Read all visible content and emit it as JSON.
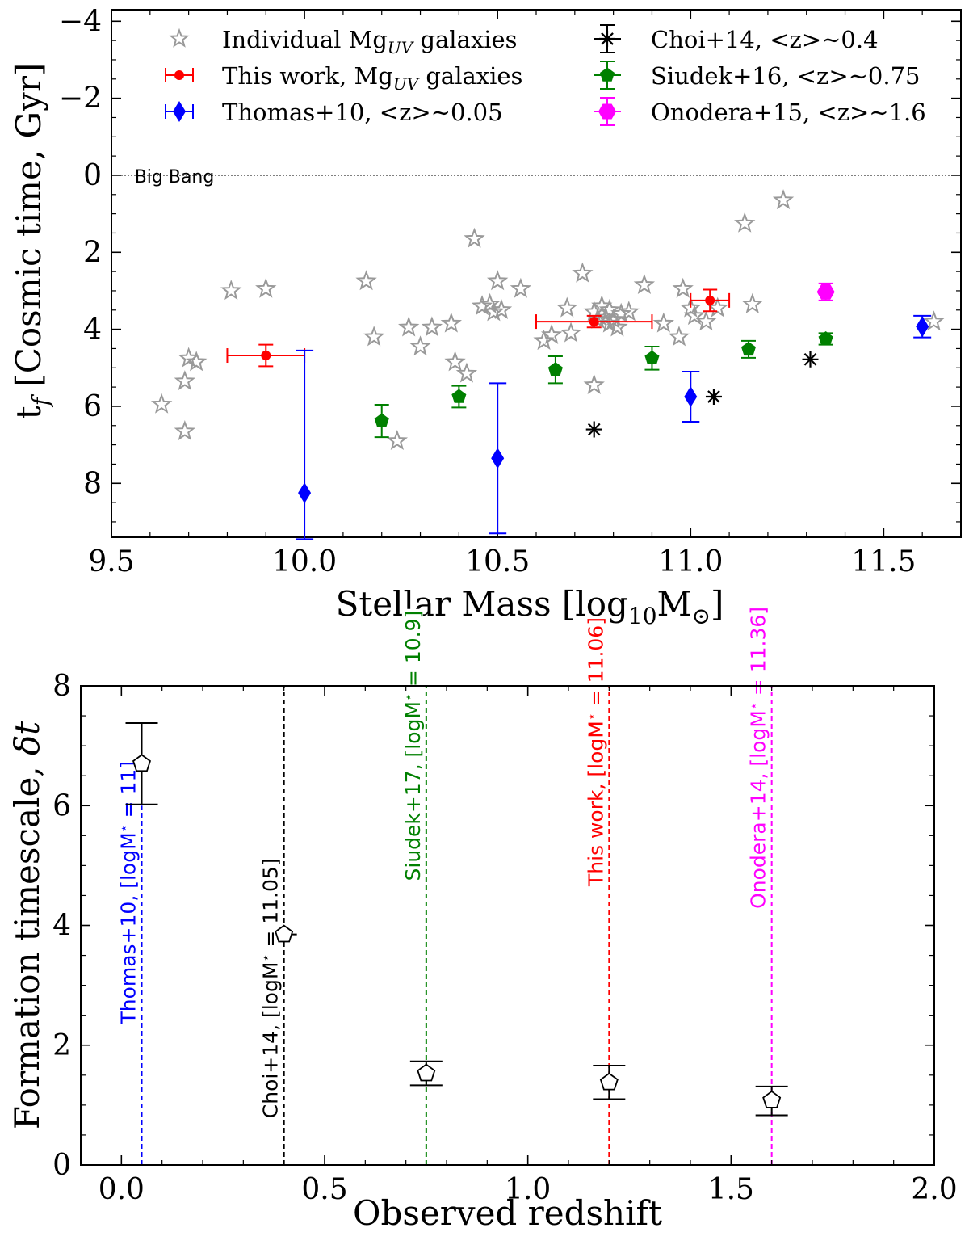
{
  "chart_data": [
    {
      "type": "scatter",
      "xlabel": "Stellar Mass [log",
      "xlabel_sub": "10",
      "xlabel_tail": "M",
      "xlabel_sun": "⊙",
      "xlabel_close": "]",
      "ylabel": "t",
      "ylabel_sub": "f",
      "ylabel_tail": " [Cosmic time, Gyr]",
      "xlim": [
        9.5,
        11.7
      ],
      "ylim": [
        9.4,
        -4.3
      ],
      "y_inverted": true,
      "x_ticks": [
        "9.5",
        "10.0",
        "10.5",
        "11.0",
        "11.5"
      ],
      "x_tick_values": [
        9.5,
        10.0,
        10.5,
        11.0,
        11.5
      ],
      "y_ticks": [
        "−4",
        "−2",
        "0",
        "2",
        "4",
        "6",
        "8"
      ],
      "y_tick_values": [
        -4,
        -2,
        0,
        2,
        4,
        6,
        8
      ],
      "annotation": {
        "text": "Big Bang",
        "x": 9.56,
        "y": 0
      },
      "reference_line": {
        "y": 0,
        "style": "dotted",
        "color": "#000000"
      },
      "legend": {
        "placement": "top",
        "entries": [
          {
            "label": "Individual Mg",
            "sub": "UV",
            "tail": " galaxies",
            "marker": "star-open",
            "color": "#999999"
          },
          {
            "label": "This work, Mg",
            "sub": "UV",
            "tail": " galaxies",
            "marker": "circle",
            "color": "#ff0000"
          },
          {
            "label": "Thomas+10, <z>∼0.05",
            "sub": "",
            "tail": "",
            "marker": "diamond",
            "color": "#0000ff"
          },
          {
            "label": "Choi+14, <z>∼0.4",
            "sub": "",
            "tail": "",
            "marker": "asterisk",
            "color": "#000000"
          },
          {
            "label": "Siudek+16, <z>∼0.75",
            "sub": "",
            "tail": "",
            "marker": "pentagon",
            "color": "#008000"
          },
          {
            "label": "Onodera+15, <z>∼1.6",
            "sub": "",
            "tail": "",
            "marker": "hexagon",
            "color": "#ff00ff"
          }
        ]
      },
      "series": [
        {
          "name": "Individual Mg_UV galaxies",
          "marker": "star-open",
          "color": "#999999",
          "points": [
            [
              9.63,
              5.95
            ],
            [
              9.69,
              5.35
            ],
            [
              9.7,
              4.75
            ],
            [
              9.72,
              4.85
            ],
            [
              9.69,
              6.65
            ],
            [
              9.81,
              3.0
            ],
            [
              9.9,
              2.95
            ],
            [
              10.16,
              2.75
            ],
            [
              10.18,
              4.2
            ],
            [
              10.24,
              6.9
            ],
            [
              10.27,
              3.95
            ],
            [
              10.3,
              4.45
            ],
            [
              10.33,
              3.95
            ],
            [
              10.38,
              3.85
            ],
            [
              10.39,
              4.85
            ],
            [
              10.42,
              5.15
            ],
            [
              10.44,
              1.65
            ],
            [
              10.46,
              3.4
            ],
            [
              10.48,
              3.35
            ],
            [
              10.49,
              3.55
            ],
            [
              10.51,
              3.5
            ],
            [
              10.5,
              2.75
            ],
            [
              10.56,
              2.95
            ],
            [
              10.62,
              4.3
            ],
            [
              10.64,
              4.15
            ],
            [
              10.68,
              3.45
            ],
            [
              10.69,
              4.1
            ],
            [
              10.72,
              2.55
            ],
            [
              10.75,
              3.55
            ],
            [
              10.76,
              3.75
            ],
            [
              10.77,
              3.4
            ],
            [
              10.78,
              3.7
            ],
            [
              10.79,
              3.5
            ],
            [
              10.8,
              3.75
            ],
            [
              10.81,
              3.95
            ],
            [
              10.82,
              3.6
            ],
            [
              10.84,
              3.55
            ],
            [
              10.79,
              3.85
            ],
            [
              10.75,
              5.45
            ],
            [
              10.88,
              2.85
            ],
            [
              10.93,
              3.85
            ],
            [
              10.97,
              4.2
            ],
            [
              10.98,
              2.95
            ],
            [
              11.0,
              3.45
            ],
            [
              11.01,
              3.65
            ],
            [
              11.04,
              3.8
            ],
            [
              11.07,
              3.45
            ],
            [
              11.14,
              1.25
            ],
            [
              11.16,
              3.35
            ],
            [
              11.24,
              0.65
            ],
            [
              11.63,
              3.8
            ]
          ]
        },
        {
          "name": "This work, Mg_UV galaxies",
          "marker": "circle",
          "color": "#ff0000",
          "points": [
            {
              "x": 9.9,
              "y": 4.68,
              "xerr": 0.1,
              "yerr": 0.28
            },
            {
              "x": 10.75,
              "y": 3.8,
              "xerr": 0.15,
              "yerr": 0.15
            },
            {
              "x": 11.05,
              "y": 3.25,
              "xerr": 0.05,
              "yerr": 0.28
            }
          ]
        },
        {
          "name": "Thomas+10, <z>~0.05",
          "marker": "diamond",
          "color": "#0000ff",
          "points": [
            {
              "x": 10.0,
              "y": 8.25,
              "yerr_low": 3.7,
              "yerr_high": 1.2
            },
            {
              "x": 10.5,
              "y": 7.35,
              "yerr_low": 1.95,
              "yerr_high": 1.95
            },
            {
              "x": 11.0,
              "y": 5.75,
              "yerr_low": 0.65,
              "yerr_high": 0.65
            },
            {
              "x": 11.6,
              "y": 3.93,
              "yerr_low": 0.28,
              "yerr_high": 0.28
            }
          ]
        },
        {
          "name": "Choi+14, <z>~0.4",
          "marker": "asterisk",
          "color": "#000000",
          "points": [
            [
              10.75,
              6.6
            ],
            [
              11.06,
              5.75
            ],
            [
              11.31,
              4.78
            ]
          ]
        },
        {
          "name": "Siudek+16, <z>~0.75",
          "marker": "pentagon",
          "color": "#008000",
          "points": [
            {
              "x": 10.2,
              "y": 6.38,
              "yerr": 0.42
            },
            {
              "x": 10.4,
              "y": 5.75,
              "yerr": 0.28
            },
            {
              "x": 10.65,
              "y": 5.05,
              "yerr": 0.35
            },
            {
              "x": 10.9,
              "y": 4.75,
              "yerr": 0.3
            },
            {
              "x": 11.15,
              "y": 4.52,
              "yerr": 0.22
            },
            {
              "x": 11.35,
              "y": 4.25,
              "yerr": 0.15
            }
          ]
        },
        {
          "name": "Onodera+15, <z>~1.6",
          "marker": "hexagon",
          "color": "#ff00ff",
          "points": [
            {
              "x": 11.35,
              "y": 3.03,
              "yerr": 0.22
            }
          ]
        }
      ]
    },
    {
      "type": "scatter",
      "xlabel": "Observed redshift",
      "ylabel": "Formation timescale, ",
      "ylabel_math": "δt",
      "xlim": [
        -0.1,
        2.0
      ],
      "ylim": [
        0,
        8
      ],
      "x_ticks": [
        "0.0",
        "0.5",
        "1.0",
        "1.5",
        "2.0"
      ],
      "x_tick_values": [
        0.0,
        0.5,
        1.0,
        1.5,
        2.0
      ],
      "y_ticks": [
        "0",
        "2",
        "4",
        "6",
        "8"
      ],
      "y_tick_values": [
        0,
        2,
        4,
        6,
        8
      ],
      "series": [
        {
          "name": "",
          "marker": "pentagon-open",
          "color": "#000000",
          "points": [
            {
              "x": 0.05,
              "y": 6.7,
              "err_low": 0.68,
              "err_high": 0.68
            },
            {
              "x": 0.4,
              "y": 3.85,
              "err_low": 0.0,
              "err_high": 0.0
            },
            {
              "x": 0.75,
              "y": 1.53,
              "err_low": 0.2,
              "err_high": 0.2
            },
            {
              "x": 1.2,
              "y": 1.38,
              "err_low": 0.28,
              "err_high": 0.28
            },
            {
              "x": 1.6,
              "y": 1.08,
              "err_low": 0.25,
              "err_high": 0.23
            }
          ]
        }
      ],
      "vlines": [
        {
          "x": 0.05,
          "color": "#0000ff",
          "label": "Thomas+10, [logM",
          "star": "⋆",
          "tail": " = 11]",
          "label_y": 4.55,
          "y_top": 6.0
        },
        {
          "x": 0.4,
          "color": "#000000",
          "label": "Choi+14, [logM",
          "star": "⋆",
          "tail": " = 11.05]",
          "label_y": 2.95,
          "y_top": 8.0
        },
        {
          "x": 0.75,
          "color": "#008000",
          "label": "Siudek+17, [logM",
          "star": "⋆",
          "tail": " = 10.9]",
          "label_y": 7.0,
          "y_top": 8.0
        },
        {
          "x": 1.2,
          "color": "#ff0000",
          "label": "This work, [logM",
          "star": "⋆",
          "tail": " = 11.06]",
          "label_y": 6.9,
          "y_top": 8.0
        },
        {
          "x": 1.6,
          "color": "#ff00ff",
          "label": "Onodera+14, [logM",
          "star": "⋆",
          "tail": " = 11.36]",
          "label_y": 6.8,
          "y_top": 8.0
        }
      ]
    }
  ]
}
